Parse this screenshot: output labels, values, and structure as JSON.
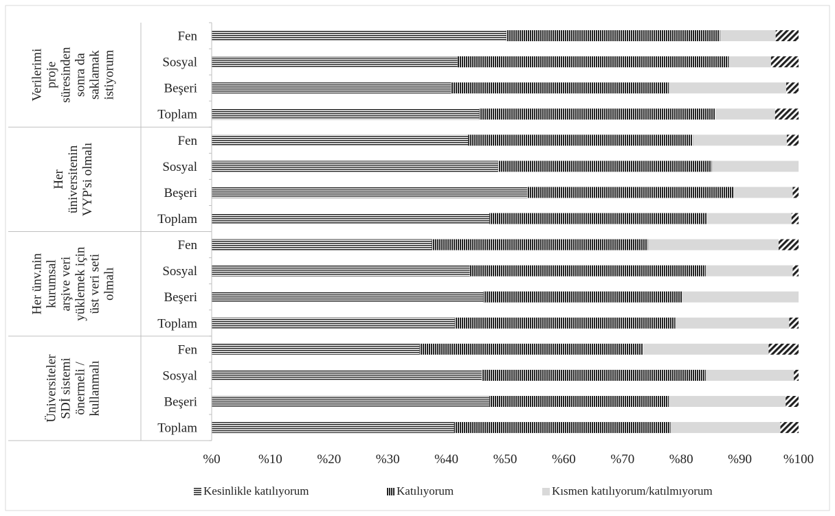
{
  "chart_data": {
    "type": "bar",
    "orientation": "horizontal",
    "stacked": true,
    "percent_stacked": true,
    "xlim": [
      0,
      100
    ],
    "x_ticks": [
      "%0",
      "%10",
      "%20",
      "%30",
      "%40",
      "%50",
      "%60",
      "%70",
      "%80",
      "%90",
      "%100"
    ],
    "legend_position": "bottom",
    "groups": [
      {
        "label": "Verilerimi proje süresinden sonra da saklamak istiyorum",
        "label_lines": [
          "Verilerimi",
          "proje",
          "süresinden",
          "sonra da",
          "saklamak",
          "istiyorum"
        ],
        "rows": [
          {
            "label": "Fen",
            "values": [
              50.2,
              36.4,
              9.5,
              3.9
            ]
          },
          {
            "label": "Sosyal",
            "values": [
              41.9,
              46.2,
              7.2,
              4.7
            ]
          },
          {
            "label": "Beşeri",
            "values": [
              40.8,
              37.1,
              20.0,
              2.1
            ]
          },
          {
            "label": "Toplam",
            "values": [
              45.6,
              40.2,
              10.2,
              4.0
            ]
          }
        ]
      },
      {
        "label": "Her üniversitenin VYP'si olmalı",
        "label_lines": [
          "Her",
          "üniversitenin",
          "VYP'si olmalı"
        ],
        "rows": [
          {
            "label": "Fen",
            "values": [
              43.7,
              38.3,
              16.0,
              2.0
            ]
          },
          {
            "label": "Sosyal",
            "values": [
              48.8,
              36.4,
              14.8,
              0.0
            ]
          },
          {
            "label": "Beşeri",
            "values": [
              53.8,
              35.1,
              10.1,
              1.0
            ]
          },
          {
            "label": "Toplam",
            "values": [
              47.3,
              37.0,
              14.5,
              1.2
            ]
          }
        ]
      },
      {
        "label": "Her ünv.nin kurumsal arşive veri yüklemek için üst veri seti olmalı",
        "label_lines": [
          "Her ünv.nin",
          "kurumsal",
          "arşive veri",
          "yüklemek için",
          "üst veri seti",
          "olmalı"
        ],
        "rows": [
          {
            "label": "Fen",
            "values": [
              37.5,
              36.8,
              22.3,
              3.4
            ]
          },
          {
            "label": "Sosyal",
            "values": [
              44.0,
              40.2,
              14.8,
              1.0
            ]
          },
          {
            "label": "Beşeri",
            "values": [
              46.3,
              33.8,
              19.9,
              0.0
            ]
          },
          {
            "label": "Toplam",
            "values": [
              41.4,
              37.6,
              19.4,
              1.6
            ]
          }
        ]
      },
      {
        "label": "Üniversiteler SDİ sistemi önermeli / kullanmalı",
        "label_lines": [
          "Üniversiteler",
          "SDİ sistemi",
          "önermeli /",
          "kullanmalı"
        ],
        "rows": [
          {
            "label": "Fen",
            "values": [
              35.4,
              38.1,
              21.4,
              5.1
            ]
          },
          {
            "label": "Sosyal",
            "values": [
              46.0,
              38.2,
              15.0,
              0.8
            ]
          },
          {
            "label": "Beşeri",
            "values": [
              47.3,
              30.6,
              19.9,
              2.2
            ]
          },
          {
            "label": "Toplam",
            "values": [
              41.3,
              36.9,
              18.7,
              3.1
            ]
          }
        ]
      }
    ],
    "series": [
      {
        "name": "Kesinlikle katılıyorum"
      },
      {
        "name": "Katılıyorum"
      },
      {
        "name": "Kısmen katılıyorum/katılmıyorum"
      },
      {
        "name": ""
      }
    ]
  }
}
